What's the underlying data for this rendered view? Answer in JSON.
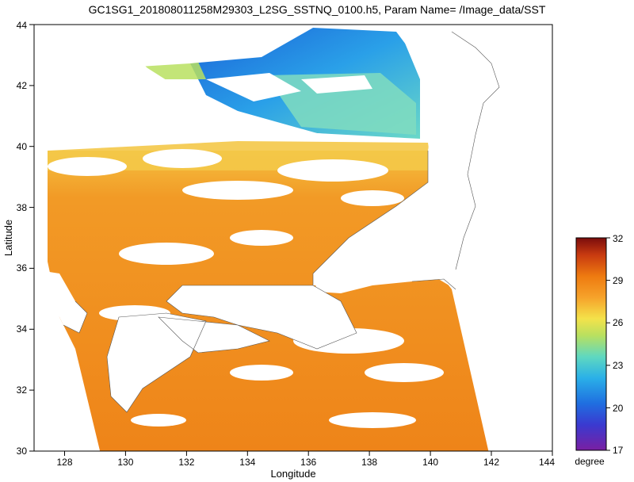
{
  "title": "GC1SG1_201808011258M29303_L2SG_SSTNQ_0100.h5, Param Name= /Image_data/SST",
  "map": {
    "x_label": "Longitude",
    "y_label": "Latitude",
    "lon_range": [
      127,
      144
    ],
    "lat_range": [
      30,
      44
    ],
    "lon_ticks": [
      "128",
      "130",
      "132",
      "134",
      "136",
      "138",
      "140",
      "142",
      "144"
    ],
    "lat_ticks": [
      "30",
      "32",
      "34",
      "36",
      "38",
      "40",
      "42",
      "44"
    ],
    "colorbar": {
      "label": "degree",
      "range": [
        17,
        32
      ],
      "ticks": [
        "17",
        "20",
        "23",
        "26",
        "29",
        "32"
      ],
      "colors": [
        "#7a1fa2",
        "#2050d8",
        "#2aa8e8",
        "#5fd8c0",
        "#b8e060",
        "#f4e24a",
        "#f6a22a",
        "#ee7a10",
        "#c83a10",
        "#7a0c0c"
      ]
    }
  }
}
